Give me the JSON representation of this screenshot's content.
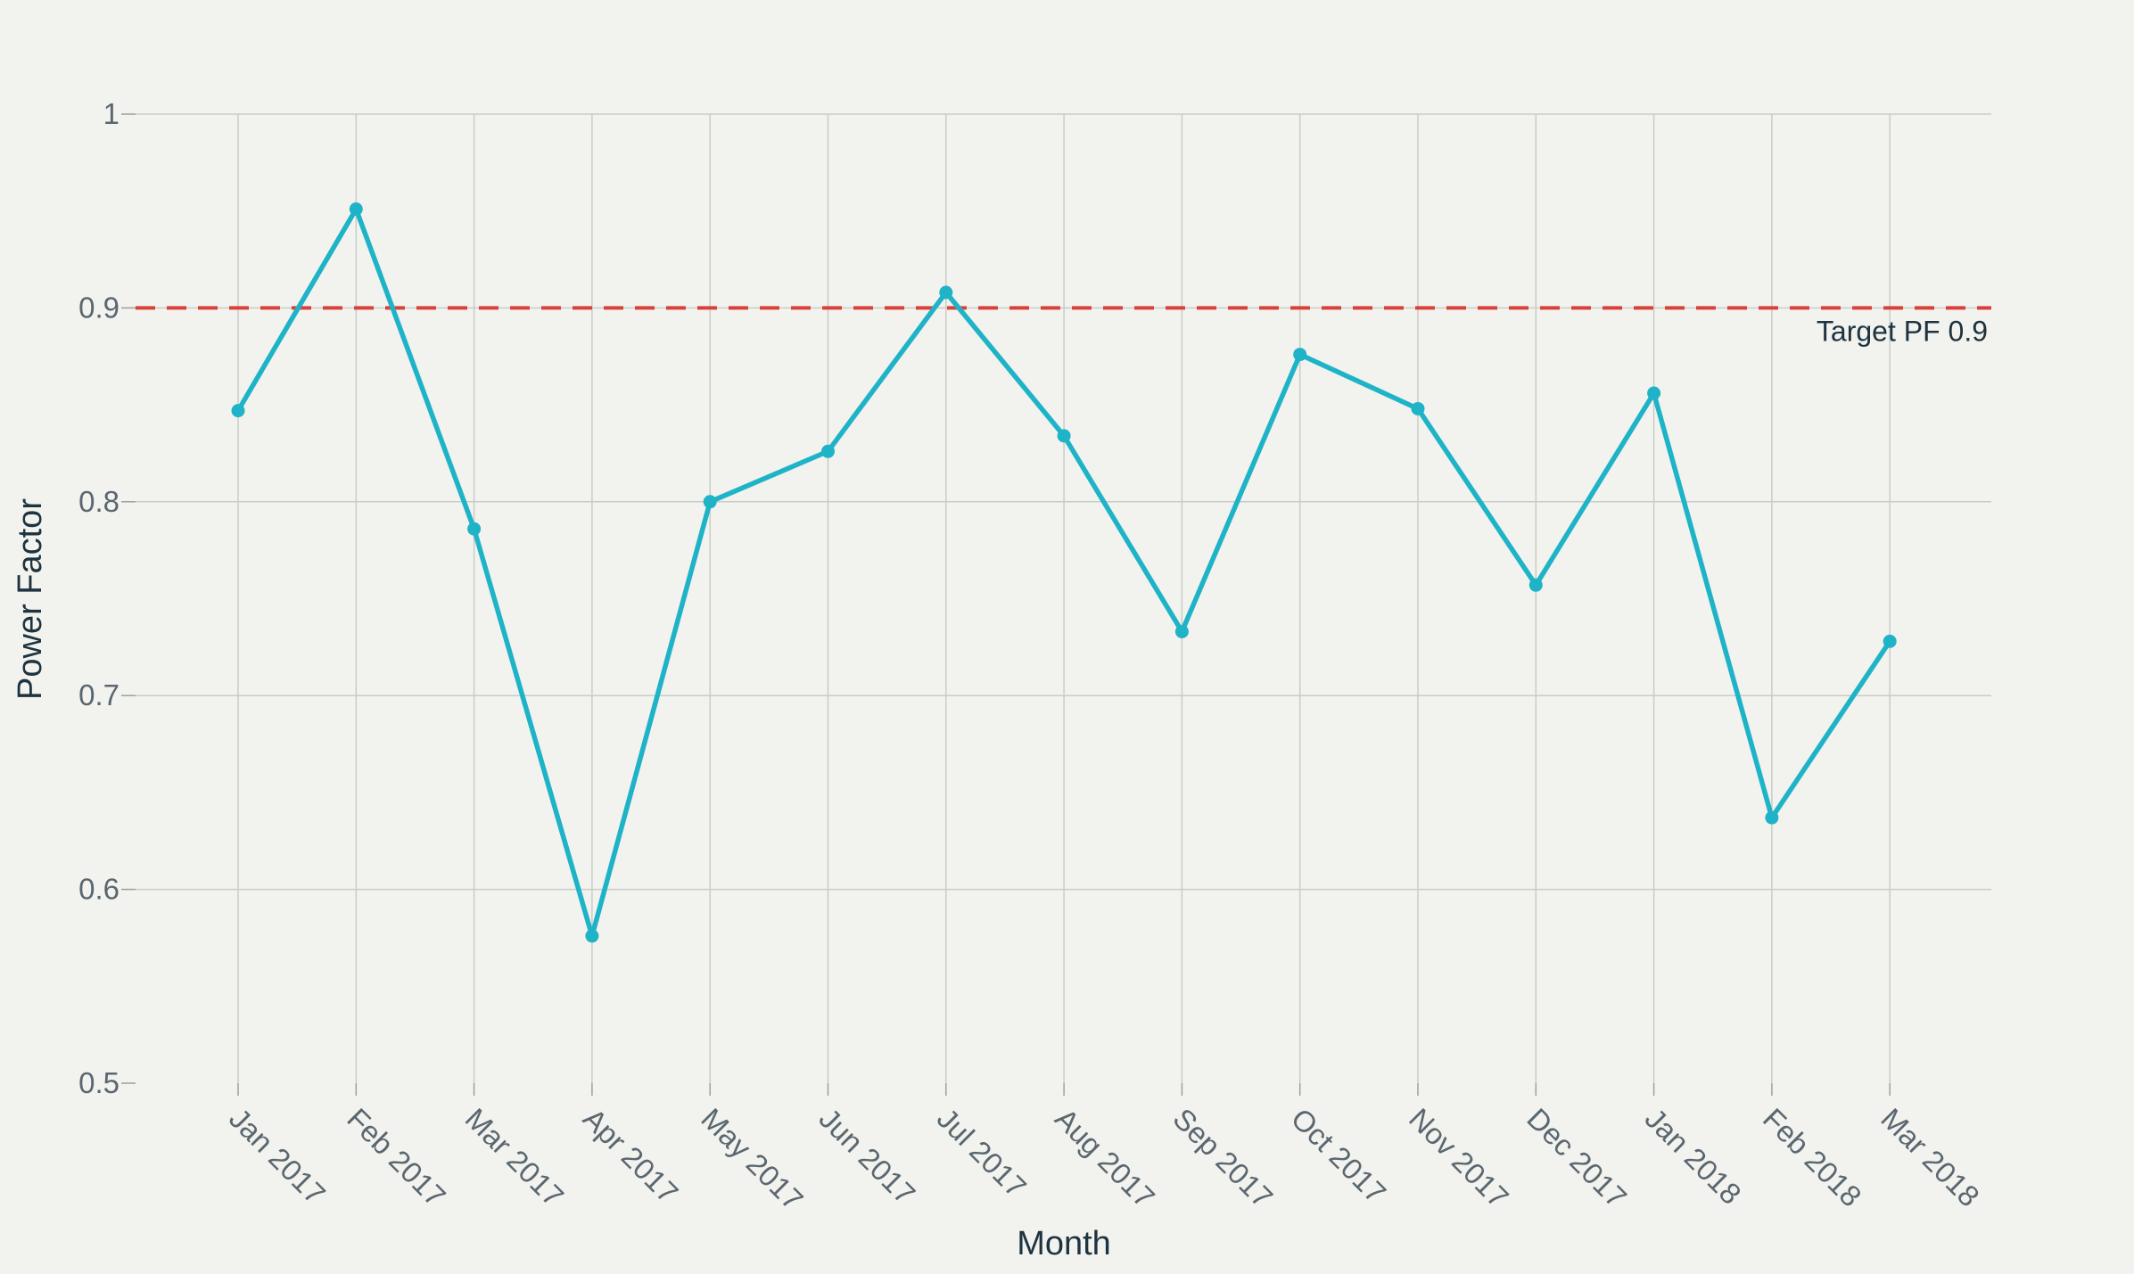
{
  "chart_data": {
    "type": "line",
    "title": "",
    "xlabel": "Month",
    "ylabel": "Power Factor",
    "ylim": [
      0.5,
      1
    ],
    "yticks": [
      "0.5",
      "0.6",
      "0.7",
      "0.8",
      "0.9",
      "1"
    ],
    "grid": true,
    "legend": "none",
    "categories": [
      "Jan 2017",
      "Feb 2017",
      "Mar 2017",
      "Apr 2017",
      "May 2017",
      "Jun 2017",
      "Jul 2017",
      "Aug 2017",
      "Sep 2017",
      "Oct 2017",
      "Nov 2017",
      "Dec 2017",
      "Jan 2018",
      "Feb 2018",
      "Mar 2018"
    ],
    "series": [
      {
        "values": [
          0.847,
          0.951,
          0.786,
          0.576,
          0.8,
          0.826,
          0.908,
          0.834,
          0.733,
          0.876,
          0.848,
          0.757,
          0.856,
          0.637,
          0.728
        ],
        "color": "#1fb3c8"
      }
    ],
    "reference_line": {
      "value": 0.9,
      "label": "Target PF 0.9",
      "color": "#d9403a",
      "style": "dashed"
    }
  }
}
